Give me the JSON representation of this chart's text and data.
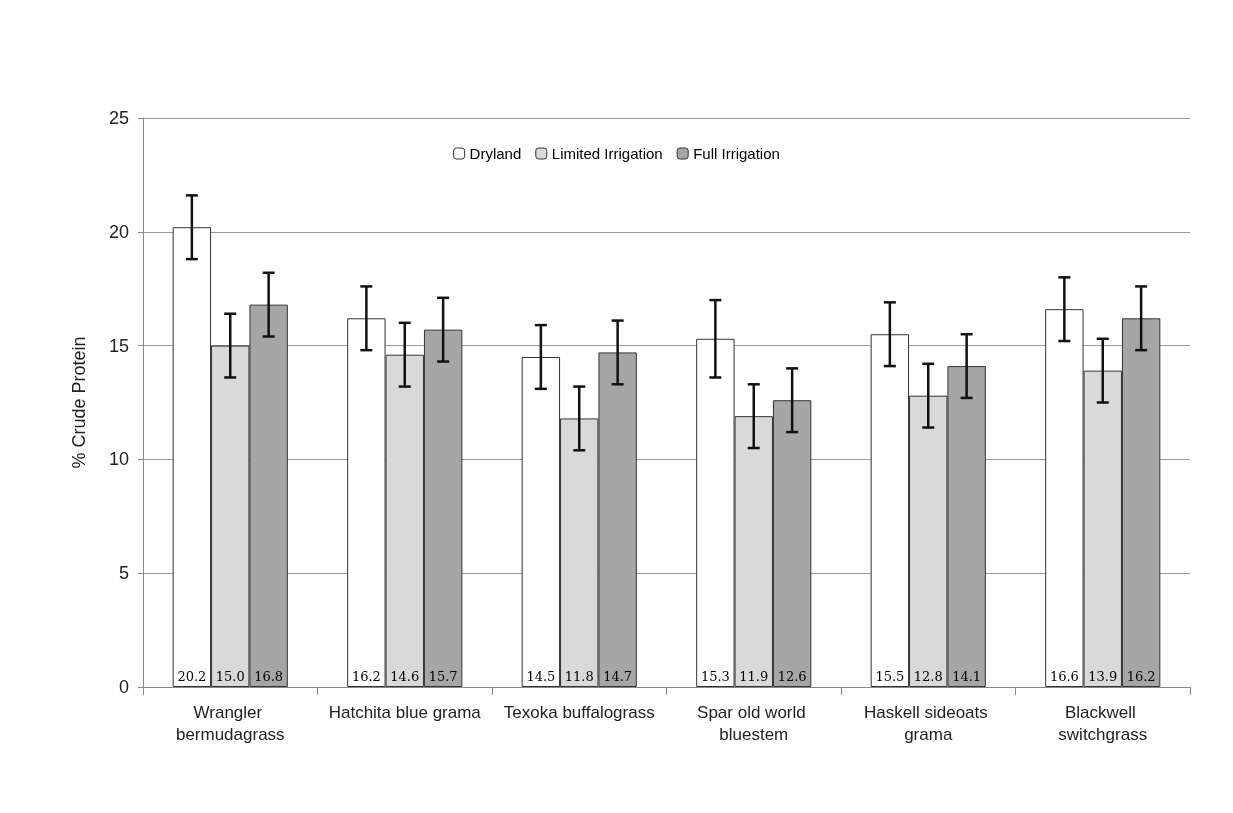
{
  "chart_data": {
    "type": "bar",
    "ylabel": "% Crude Protein",
    "categories": [
      "Wrangler bermudagrass",
      "Hatchita blue grama",
      "Texoka buffalograss",
      "Spar old world bluestem",
      "Haskell sideoats grama",
      "Blackwell switchgrass"
    ],
    "series": [
      {
        "name": "Dryland",
        "color": "#ffffff",
        "values": [
          20.2,
          16.2,
          14.5,
          15.3,
          15.5,
          16.6
        ],
        "value_labels": [
          "20.2",
          "16.2",
          "14.5",
          "15.3",
          "15.5",
          "16.6"
        ],
        "errors": [
          1.4,
          1.4,
          1.4,
          1.7,
          1.4,
          1.4
        ]
      },
      {
        "name": "Limited Irrigation",
        "color": "#d9d9d9",
        "values": [
          15.0,
          14.6,
          11.8,
          11.9,
          12.8,
          13.9
        ],
        "value_labels": [
          "15.0",
          "14.6",
          "11.8",
          "11.9",
          "12.8",
          "13.9"
        ],
        "errors": [
          1.4,
          1.4,
          1.4,
          1.4,
          1.4,
          1.4
        ]
      },
      {
        "name": "Full Irrigation",
        "color": "#a6a6a6",
        "values": [
          16.8,
          15.7,
          14.7,
          12.6,
          14.1,
          16.2
        ],
        "value_labels": [
          "16.8",
          "15.7",
          "14.7",
          "12.6",
          "14.1",
          "16.2"
        ],
        "errors": [
          1.4,
          1.4,
          1.4,
          1.4,
          1.4,
          1.4
        ]
      }
    ],
    "ylim": [
      0,
      25
    ],
    "yticks": [
      0,
      5,
      10,
      15,
      20,
      25
    ],
    "grid": "y",
    "legend": "top"
  }
}
